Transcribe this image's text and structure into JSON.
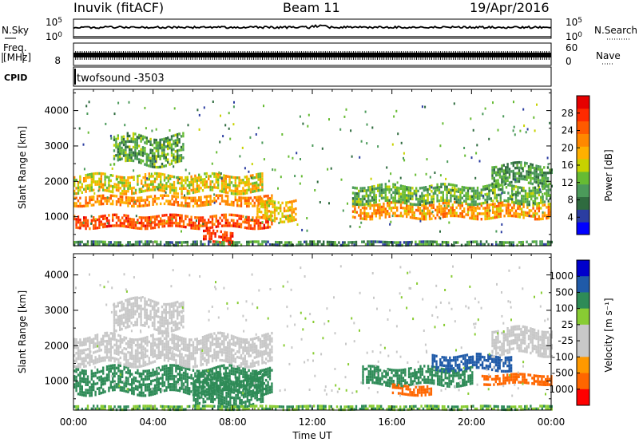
{
  "header": {
    "left": "Inuvik (fitACF)",
    "center": "Beam 11",
    "right": "19/Apr/2016"
  },
  "strips": {
    "nsky_label": "N.Sky",
    "nsky_top_tick": "10^5",
    "nsky_bottom_tick": "10^0",
    "nsearch_label": "N.Search",
    "nsearch_top_tick": "10^5",
    "nsearch_bottom_tick": "10^0",
    "freq_label_line1": "Freq.",
    "freq_label_line2": "[MHz]",
    "freq_tick": "8",
    "nave_label": "Nave",
    "nave_top_tick": "60",
    "nave_bottom_tick": "0",
    "cpid_label": "CPID",
    "cpid_value": "twofsound -3503"
  },
  "colors": {
    "power_scale": [
      "#0000ff",
      "#2b3da1",
      "#2f6b3f",
      "#4b9a5a",
      "#66bb33",
      "#c7d200",
      "#ffb000",
      "#ff8800",
      "#ff5a00",
      "#ff2a00",
      "#e60000"
    ],
    "velocity_scale": [
      "#ff0000",
      "#ff6600",
      "#ff9900",
      "#c8c8c8",
      "#c8c8c8",
      "#88cc33",
      "#2e8b57",
      "#1f5aa8",
      "#0000cc"
    ]
  },
  "chart_data": [
    {
      "type": "heatmap",
      "name": "power",
      "x_label": "Time UT",
      "y_label": "Slant Range [km]",
      "x_ticks": [
        "00:00",
        "04:00",
        "08:00",
        "12:00",
        "16:00",
        "20:00",
        "00:00"
      ],
      "y_ticks": [
        1000,
        2000,
        3000,
        4000
      ],
      "xlim": [
        0,
        24
      ],
      "ylim": [
        180,
        4600
      ],
      "colorbar_label": "Power [dB]",
      "colorbar_ticks": [
        4,
        8,
        12,
        16,
        20,
        24,
        28
      ],
      "colorbar_range": [
        0,
        32
      ],
      "bands": [
        {
          "t": [
            0,
            10
          ],
          "r": [
            700,
            1050
          ],
          "v": [
            22,
            30
          ]
        },
        {
          "t": [
            0,
            10
          ],
          "r": [
            1300,
            1600
          ],
          "v": [
            18,
            26
          ]
        },
        {
          "t": [
            0,
            9.5
          ],
          "r": [
            1700,
            2200
          ],
          "v": [
            12,
            22
          ]
        },
        {
          "t": [
            2,
            5.5
          ],
          "r": [
            2500,
            3300
          ],
          "v": [
            6,
            16
          ]
        },
        {
          "t": [
            6.5,
            8
          ],
          "r": [
            220,
            600
          ],
          "v": [
            24,
            30
          ]
        },
        {
          "t": [
            9.2,
            11.2
          ],
          "r": [
            900,
            1500
          ],
          "v": [
            14,
            22
          ]
        },
        {
          "t": [
            14,
            24
          ],
          "r": [
            1000,
            1400
          ],
          "v": [
            16,
            26
          ]
        },
        {
          "t": [
            14,
            24
          ],
          "r": [
            1400,
            1900
          ],
          "v": [
            8,
            16
          ]
        },
        {
          "t": [
            21,
            24
          ],
          "r": [
            1900,
            2500
          ],
          "v": [
            6,
            14
          ]
        },
        {
          "t": [
            0,
            24
          ],
          "r": [
            220,
            320
          ],
          "v": [
            4,
            14
          ]
        }
      ]
    },
    {
      "type": "heatmap",
      "name": "velocity",
      "x_label": "Time UT",
      "y_label": "Slant Range [km]",
      "x_ticks": [
        "00:00",
        "04:00",
        "08:00",
        "12:00",
        "16:00",
        "20:00",
        "00:00"
      ],
      "y_ticks": [
        1000,
        2000,
        3000,
        4000
      ],
      "xlim": [
        0,
        24
      ],
      "ylim": [
        180,
        4600
      ],
      "colorbar_label": "Velocity [m s⁻¹]",
      "colorbar_ticks": [
        1000,
        500,
        100,
        25,
        -25,
        -100,
        -500,
        -1000
      ],
      "bands": [
        {
          "t": [
            0,
            10
          ],
          "r": [
            700,
            1400
          ],
          "v": [
            100,
            300
          ]
        },
        {
          "t": [
            0,
            10
          ],
          "r": [
            1500,
            2300
          ],
          "v": [
            -20,
            20
          ]
        },
        {
          "t": [
            2,
            5.5
          ],
          "r": [
            2500,
            3300
          ],
          "v": [
            -20,
            20
          ]
        },
        {
          "t": [
            6,
            9.5
          ],
          "r": [
            300,
            1200
          ],
          "v": [
            200,
            500
          ]
        },
        {
          "t": [
            14.5,
            20
          ],
          "r": [
            900,
            1400
          ],
          "v": [
            150,
            450
          ]
        },
        {
          "t": [
            16,
            18
          ],
          "r": [
            600,
            900
          ],
          "v": [
            -300,
            -120
          ]
        },
        {
          "t": [
            18,
            22
          ],
          "r": [
            1300,
            1750
          ],
          "v": [
            600,
            1000
          ]
        },
        {
          "t": [
            20.5,
            24
          ],
          "r": [
            900,
            1200
          ],
          "v": [
            -500,
            -150
          ]
        },
        {
          "t": [
            21,
            24
          ],
          "r": [
            1800,
            2500
          ],
          "v": [
            -20,
            20
          ]
        },
        {
          "t": [
            0,
            24
          ],
          "r": [
            220,
            320
          ],
          "v": [
            30,
            150
          ]
        }
      ]
    }
  ]
}
